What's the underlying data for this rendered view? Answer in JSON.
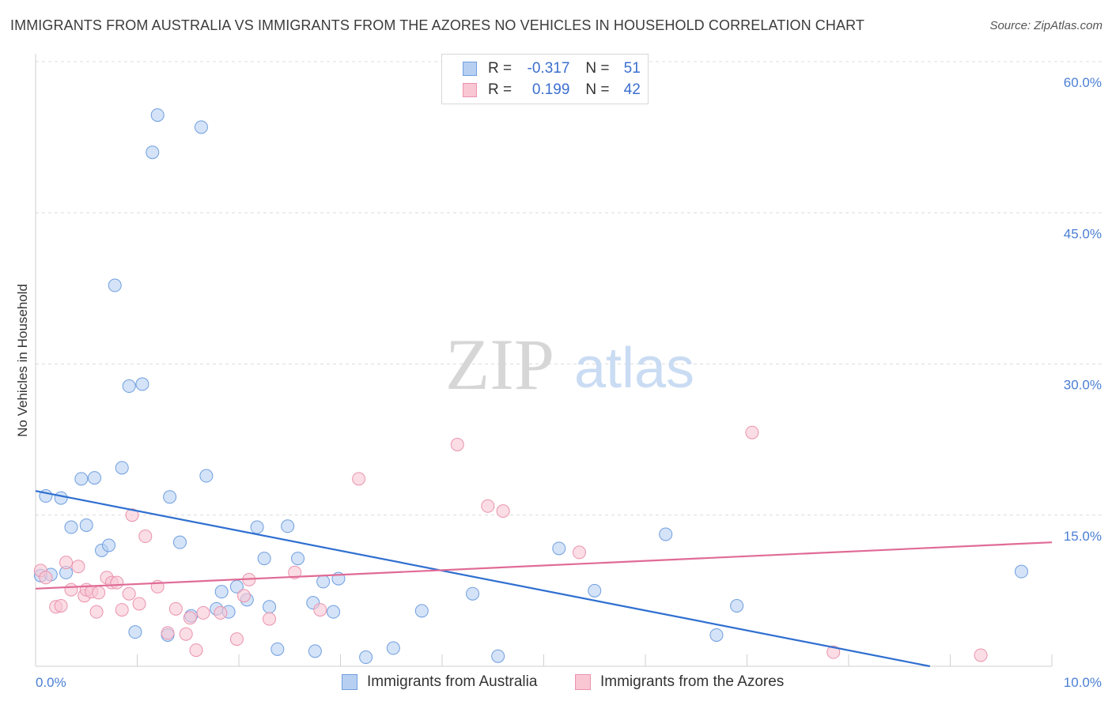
{
  "title": "IMMIGRANTS FROM AUSTRALIA VS IMMIGRANTS FROM THE AZORES NO VEHICLES IN HOUSEHOLD CORRELATION CHART",
  "source": "Source: ZipAtlas.com",
  "watermark": {
    "zip": "ZIP",
    "atlas": "atlas"
  },
  "colors": {
    "blue_fill": "#b7d0f2",
    "blue_stroke": "#6f9ee0",
    "blue_line": "#2f6fd0",
    "pink_fill": "#f9c6d4",
    "pink_stroke": "#ea93ad",
    "pink_line": "#e06b96",
    "tick_text": "#4a7fd4",
    "grid": "#dcdcdc"
  },
  "legend": {
    "rows": [
      {
        "r_label": "R =",
        "r_value": "-0.317",
        "n_label": "N =",
        "n_value": "51"
      },
      {
        "r_label": "R =",
        "r_value": "0.199",
        "n_label": "N =",
        "n_value": "42"
      }
    ]
  },
  "bottom_legend": [
    "Immigrants from Australia",
    "Immigrants from the Azores"
  ],
  "chart_data": {
    "type": "scatter",
    "title": "IMMIGRANTS FROM AUSTRALIA VS IMMIGRANTS FROM THE AZORES NO VEHICLES IN HOUSEHOLD CORRELATION CHART",
    "xlabel": "",
    "ylabel": "No Vehicles in Household",
    "xlim": [
      0,
      10
    ],
    "ylim": [
      0,
      60
    ],
    "x_tick_labels": [
      "0.0%",
      "10.0%"
    ],
    "y_ticks": [
      15,
      30,
      45,
      60
    ],
    "y_tick_labels": [
      "15.0%",
      "30.0%",
      "45.0%",
      "60.0%"
    ],
    "series": [
      {
        "name": "Immigrants from Australia",
        "color": "blue",
        "trend": {
          "x": [
            0,
            8.8
          ],
          "y": [
            17.4,
            0
          ]
        },
        "points": [
          [
            0.05,
            9.0
          ],
          [
            0.1,
            16.9
          ],
          [
            0.15,
            9.1
          ],
          [
            0.25,
            16.7
          ],
          [
            0.3,
            9.3
          ],
          [
            0.35,
            13.8
          ],
          [
            0.45,
            18.6
          ],
          [
            0.5,
            14.0
          ],
          [
            0.58,
            18.7
          ],
          [
            0.65,
            11.5
          ],
          [
            0.72,
            12.0
          ],
          [
            0.78,
            37.8
          ],
          [
            0.85,
            19.7
          ],
          [
            0.92,
            27.8
          ],
          [
            0.98,
            3.4
          ],
          [
            1.05,
            28.0
          ],
          [
            1.15,
            51.0
          ],
          [
            1.2,
            54.7
          ],
          [
            1.3,
            3.1
          ],
          [
            1.32,
            16.8
          ],
          [
            1.42,
            12.3
          ],
          [
            1.53,
            5.0
          ],
          [
            1.63,
            53.5
          ],
          [
            1.68,
            18.9
          ],
          [
            1.78,
            5.7
          ],
          [
            1.83,
            7.4
          ],
          [
            1.9,
            5.4
          ],
          [
            1.98,
            7.9
          ],
          [
            2.08,
            6.6
          ],
          [
            2.18,
            13.8
          ],
          [
            2.25,
            10.7
          ],
          [
            2.3,
            5.9
          ],
          [
            2.38,
            1.7
          ],
          [
            2.48,
            13.9
          ],
          [
            2.58,
            10.7
          ],
          [
            2.73,
            6.3
          ],
          [
            2.75,
            1.5
          ],
          [
            2.83,
            8.4
          ],
          [
            2.93,
            5.4
          ],
          [
            2.98,
            8.7
          ],
          [
            3.25,
            0.9
          ],
          [
            3.52,
            1.8
          ],
          [
            3.8,
            5.5
          ],
          [
            4.3,
            7.2
          ],
          [
            4.55,
            1.0
          ],
          [
            5.15,
            11.7
          ],
          [
            5.5,
            7.5
          ],
          [
            6.2,
            13.1
          ],
          [
            6.7,
            3.1
          ],
          [
            6.9,
            6.0
          ],
          [
            9.7,
            9.4
          ]
        ]
      },
      {
        "name": "Immigrants from the Azores",
        "color": "pink",
        "trend": {
          "x": [
            0,
            10
          ],
          "y": [
            7.7,
            12.3
          ]
        },
        "points": [
          [
            0.05,
            9.5
          ],
          [
            0.1,
            8.8
          ],
          [
            0.2,
            5.9
          ],
          [
            0.25,
            6.0
          ],
          [
            0.3,
            10.3
          ],
          [
            0.35,
            7.6
          ],
          [
            0.42,
            9.9
          ],
          [
            0.48,
            7.0
          ],
          [
            0.5,
            7.6
          ],
          [
            0.55,
            7.4
          ],
          [
            0.6,
            5.4
          ],
          [
            0.62,
            7.3
          ],
          [
            0.7,
            8.8
          ],
          [
            0.75,
            8.3
          ],
          [
            0.8,
            8.3
          ],
          [
            0.85,
            5.6
          ],
          [
            0.92,
            7.2
          ],
          [
            0.95,
            15.0
          ],
          [
            1.02,
            6.2
          ],
          [
            1.08,
            12.9
          ],
          [
            1.2,
            7.9
          ],
          [
            1.3,
            3.3
          ],
          [
            1.38,
            5.7
          ],
          [
            1.48,
            3.2
          ],
          [
            1.52,
            4.8
          ],
          [
            1.58,
            1.6
          ],
          [
            1.65,
            5.3
          ],
          [
            1.82,
            5.3
          ],
          [
            1.98,
            2.7
          ],
          [
            2.05,
            7.0
          ],
          [
            2.1,
            8.6
          ],
          [
            2.3,
            4.7
          ],
          [
            2.55,
            9.3
          ],
          [
            2.8,
            5.6
          ],
          [
            3.18,
            18.6
          ],
          [
            4.15,
            22.0
          ],
          [
            4.45,
            15.9
          ],
          [
            4.6,
            15.4
          ],
          [
            5.35,
            11.3
          ],
          [
            7.05,
            23.2
          ],
          [
            7.85,
            1.4
          ],
          [
            9.3,
            1.1
          ]
        ]
      }
    ]
  }
}
